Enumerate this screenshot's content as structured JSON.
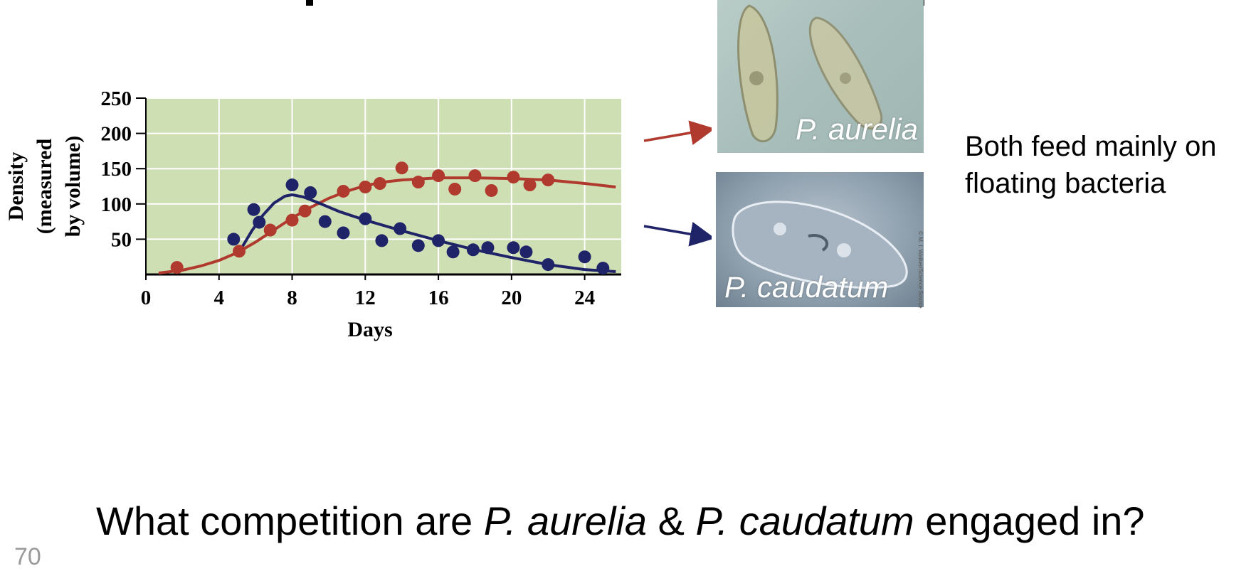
{
  "chart_data": {
    "type": "scatter",
    "xlabel": "Days",
    "ylabel_lines": [
      "Density",
      "(measured",
      "by volume)"
    ],
    "x_ticks": [
      0,
      4,
      8,
      12,
      16,
      20,
      24
    ],
    "y_ticks": [
      50,
      100,
      150,
      200,
      250
    ],
    "xlim": [
      0,
      26
    ],
    "ylim": [
      0,
      250
    ],
    "grid": true,
    "series": [
      {
        "name": "P. aurelia",
        "color": "#b03a2e",
        "points": [
          [
            1.7,
            10
          ],
          [
            5.1,
            33
          ],
          [
            6.8,
            63
          ],
          [
            8.0,
            77
          ],
          [
            8.7,
            90
          ],
          [
            10.8,
            118
          ],
          [
            12.0,
            124
          ],
          [
            12.8,
            129
          ],
          [
            14.0,
            151
          ],
          [
            14.9,
            131
          ],
          [
            16.0,
            140
          ],
          [
            16.9,
            121
          ],
          [
            18.0,
            140
          ],
          [
            18.9,
            119
          ],
          [
            20.1,
            138
          ],
          [
            21.0,
            127
          ],
          [
            22.0,
            134
          ]
        ],
        "curve": [
          [
            0.7,
            2
          ],
          [
            2,
            6
          ],
          [
            3,
            12
          ],
          [
            4,
            20
          ],
          [
            5,
            31
          ],
          [
            6,
            46
          ],
          [
            7,
            63
          ],
          [
            8,
            80
          ],
          [
            9,
            95
          ],
          [
            10,
            108
          ],
          [
            11,
            118
          ],
          [
            12,
            126
          ],
          [
            13,
            131
          ],
          [
            14,
            134
          ],
          [
            16,
            137
          ],
          [
            18,
            137
          ],
          [
            20,
            136
          ],
          [
            22,
            134
          ],
          [
            24,
            129
          ],
          [
            25.7,
            124
          ]
        ]
      },
      {
        "name": "P. caudatum",
        "color": "#1f2468",
        "points": [
          [
            4.8,
            50
          ],
          [
            5.9,
            92
          ],
          [
            6.2,
            74
          ],
          [
            8.0,
            127
          ],
          [
            9.0,
            116
          ],
          [
            9.8,
            75
          ],
          [
            10.8,
            59
          ],
          [
            12.0,
            79
          ],
          [
            12.9,
            48
          ],
          [
            13.9,
            65
          ],
          [
            14.9,
            41
          ],
          [
            16.0,
            48
          ],
          [
            16.8,
            32
          ],
          [
            17.9,
            35
          ],
          [
            18.7,
            38
          ],
          [
            20.1,
            38
          ],
          [
            20.8,
            32
          ],
          [
            22.0,
            14
          ],
          [
            24.0,
            25
          ],
          [
            25.0,
            9
          ]
        ],
        "curve": [
          [
            5.2,
            36
          ],
          [
            5.8,
            62
          ],
          [
            6.4,
            84
          ],
          [
            7.0,
            101
          ],
          [
            7.6,
            111
          ],
          [
            8.0,
            113
          ],
          [
            8.6,
            110
          ],
          [
            9.4,
            102
          ],
          [
            10.6,
            89
          ],
          [
            12.0,
            77
          ],
          [
            14.0,
            62
          ],
          [
            16.0,
            48
          ],
          [
            18.0,
            35
          ],
          [
            20.0,
            24
          ],
          [
            22.0,
            14
          ],
          [
            24.0,
            7
          ],
          [
            25.7,
            4
          ]
        ]
      }
    ]
  },
  "images": {
    "aurelia": {
      "caption": "P. aurelia",
      "arrow_color": "#b03a2e"
    },
    "caudatum": {
      "caption": "P. caudatum",
      "arrow_color": "#1f2468",
      "credit": "© M. I. Walker/Science Source"
    }
  },
  "side_note": "Both feed mainly on floating bacteria",
  "question": {
    "prefix": "What competition are ",
    "species1": "P. aurelia",
    "connector": " & ",
    "species2": "P. caudatum",
    "suffix": " engaged in?"
  },
  "slide_number": "70"
}
